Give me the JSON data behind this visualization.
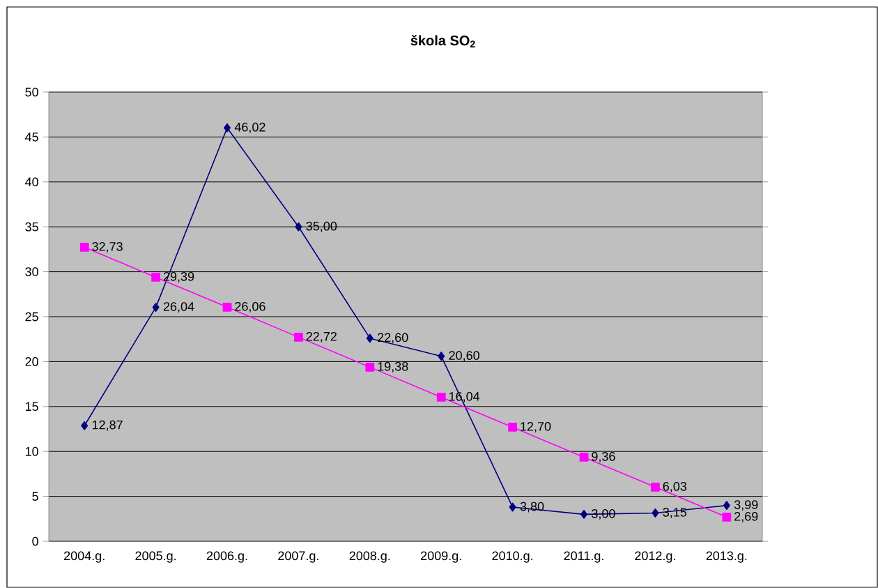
{
  "chart_data": {
    "type": "line",
    "title": "škola SO$_{2}$",
    "categories": [
      "2004.g.",
      "2005.g.",
      "2006.g.",
      "2007.g.",
      "2008.g.",
      "2009.g.",
      "2010.g.",
      "2011.g.",
      "2012.g.",
      "2013.g."
    ],
    "series": [
      {
        "color": "#000080",
        "marker": "diamond",
        "values": [
          12.87,
          26.04,
          46.02,
          35.0,
          22.6,
          20.6,
          3.8,
          3.0,
          3.15,
          3.99
        ],
        "value_labels": [
          "12,87",
          "26,04",
          "46,02",
          "35,00",
          "22,60",
          "20,60",
          "3,80",
          "3,00",
          "3,15",
          "3,99"
        ]
      },
      {
        "color": "#ff00ff",
        "marker": "square",
        "values": [
          32.73,
          29.39,
          26.06,
          22.72,
          19.38,
          16.04,
          12.7,
          9.36,
          6.03,
          2.69
        ],
        "value_labels": [
          "32,73",
          "29,39",
          "26,06",
          "22,72",
          "19,38",
          "16,04",
          "12,70",
          "9,36",
          "6,03",
          "2,69"
        ]
      }
    ],
    "ylim": [
      0,
      50
    ],
    "yticks": [
      0,
      5,
      10,
      15,
      20,
      25,
      30,
      35,
      40,
      45,
      50
    ],
    "grid": "y",
    "line_style": "solid"
  }
}
